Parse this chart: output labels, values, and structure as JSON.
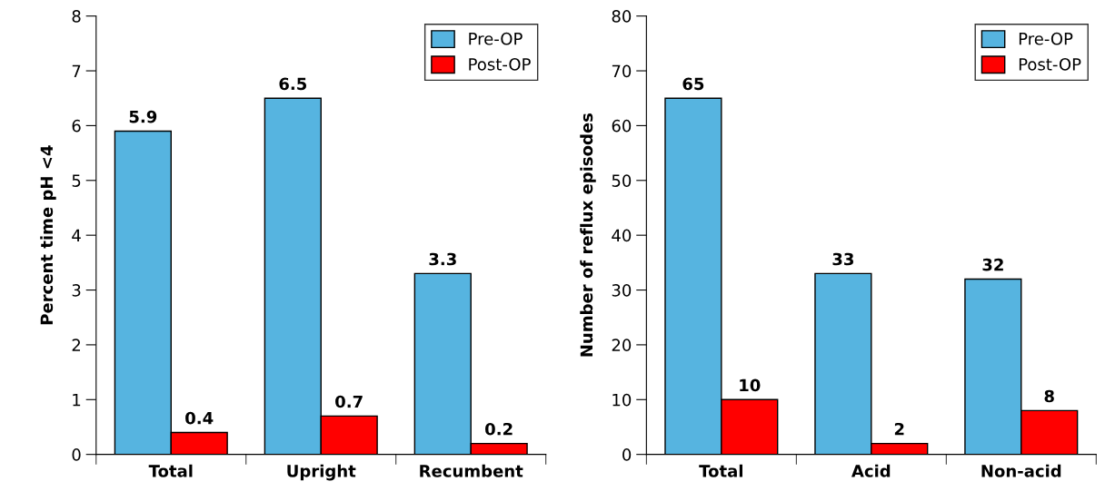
{
  "chart_data": [
    {
      "type": "bar",
      "ylabel": "Percent time pH <4",
      "categories": [
        "Total",
        "Upright",
        "Recumbent"
      ],
      "ylim": [
        0,
        8
      ],
      "yticks": [
        0,
        1,
        2,
        3,
        4,
        5,
        6,
        7,
        8
      ],
      "grid": false,
      "legend": "top right",
      "data_labels": true,
      "series": [
        {
          "name": "Pre-OP",
          "color": "#56b4e0",
          "values": [
            5.9,
            6.5,
            3.3
          ]
        },
        {
          "name": "Post-OP",
          "color": "#ff0000",
          "values": [
            0.4,
            0.7,
            0.2
          ]
        }
      ]
    },
    {
      "type": "bar",
      "ylabel": "Number of reflux episodes",
      "categories": [
        "Total",
        "Acid",
        "Non-acid"
      ],
      "ylim": [
        0,
        80
      ],
      "yticks": [
        0,
        10,
        20,
        30,
        40,
        50,
        60,
        70,
        80
      ],
      "grid": false,
      "legend": "top right",
      "data_labels": true,
      "series": [
        {
          "name": "Pre-OP",
          "color": "#56b4e0",
          "values": [
            65,
            33,
            32
          ]
        },
        {
          "name": "Post-OP",
          "color": "#ff0000",
          "values": [
            10,
            2,
            8
          ]
        }
      ]
    }
  ]
}
